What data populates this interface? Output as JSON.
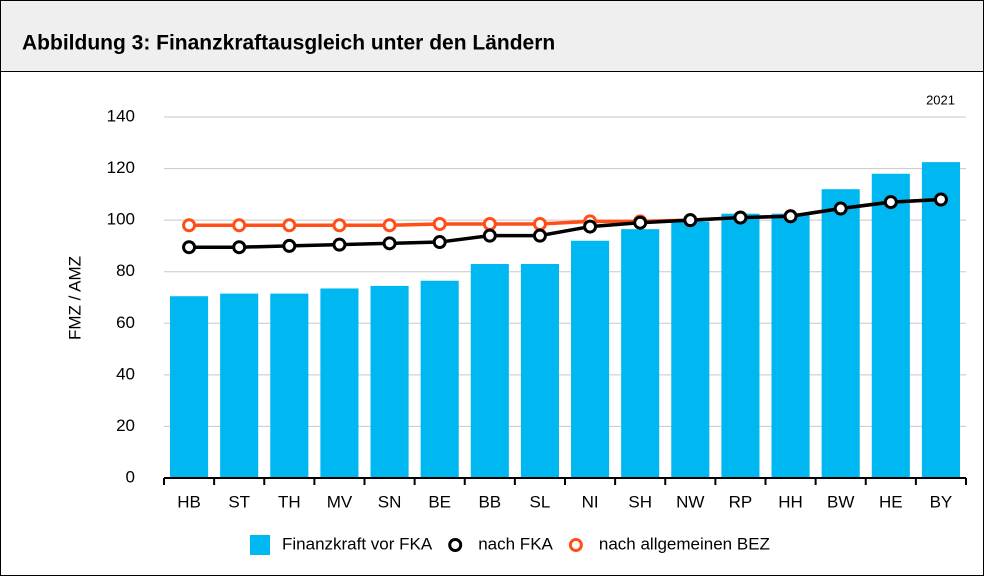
{
  "chart_data": {
    "type": "bar",
    "title": "Abbildung 3: Finanzkraftausgleich unter den Ländern",
    "annotation": "2021",
    "y_label": "FMZ / AMZ",
    "categories": [
      "HB",
      "ST",
      "TH",
      "MV",
      "SN",
      "BE",
      "BB",
      "SL",
      "NI",
      "SH",
      "NW",
      "RP",
      "HH",
      "BW",
      "HE",
      "BY"
    ],
    "series": [
      {
        "name": "Finanzkraft vor FKA",
        "type": "bar",
        "color": "#00b8f1",
        "values": [
          70.5,
          71.5,
          71.5,
          73.5,
          74.5,
          76.5,
          83,
          83,
          92,
          96.5,
          99.5,
          102.5,
          102.5,
          112,
          118,
          122.5
        ]
      },
      {
        "name": "nach FKA",
        "type": "line",
        "color": "#000000",
        "values": [
          89.5,
          89.5,
          90,
          90.5,
          91,
          91.5,
          94,
          94,
          97.5,
          99,
          100,
          101,
          101.5,
          104.5,
          107,
          108
        ]
      },
      {
        "name": "nach allgemeinen BEZ",
        "type": "line",
        "color": "#ff4f17",
        "values": [
          98,
          98,
          98,
          98,
          98,
          98.5,
          98.5,
          98.5,
          99.5,
          99.5,
          100,
          101,
          101.5,
          104.5,
          107,
          108
        ]
      }
    ],
    "ylim": [
      0,
      140
    ],
    "yticks": [
      0,
      20,
      40,
      60,
      80,
      100,
      120,
      140
    ],
    "grid": true
  }
}
